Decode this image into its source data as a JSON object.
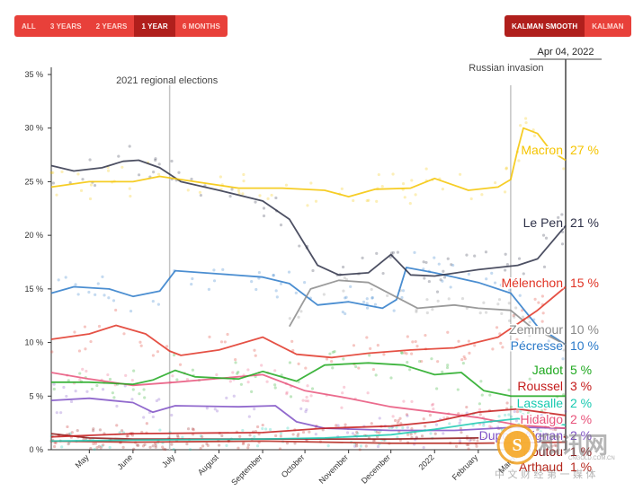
{
  "controls": {
    "range_buttons": [
      {
        "label": "ALL",
        "active": false
      },
      {
        "label": "3 YEARS",
        "active": false
      },
      {
        "label": "2 YEARS",
        "active": false
      },
      {
        "label": "1 YEAR",
        "active": true
      },
      {
        "label": "6 MONTHS",
        "active": false
      }
    ],
    "smoothing_buttons": [
      {
        "label": "KALMAN SMOOTH",
        "active": true
      },
      {
        "label": "KALMAN",
        "active": false
      }
    ]
  },
  "watermark": {
    "brand_text": "和讯网",
    "sub_text": "中 文 财 经 第 一 媒 体",
    "url_text": "CNGOLD.COM.CN"
  },
  "chart_data": {
    "type": "line",
    "title": "French presidential election 2022 polls",
    "date_readout": "Apr 04, 2022",
    "x_range": [
      "2021-04-04",
      "2022-04-04"
    ],
    "x_ticks": [
      {
        "label": "May",
        "date": "2021-05-01"
      },
      {
        "label": "June",
        "date": "2021-06-01"
      },
      {
        "label": "July",
        "date": "2021-07-01"
      },
      {
        "label": "August",
        "date": "2021-08-01"
      },
      {
        "label": "September",
        "date": "2021-09-01"
      },
      {
        "label": "October",
        "date": "2021-10-01"
      },
      {
        "label": "November",
        "date": "2021-11-01"
      },
      {
        "label": "December",
        "date": "2021-12-01"
      },
      {
        "label": "2022",
        "date": "2022-01-01"
      },
      {
        "label": "February",
        "date": "2022-02-01"
      },
      {
        "label": "March",
        "date": "2022-03-01"
      }
    ],
    "ylim": [
      0,
      35
    ],
    "y_ticks": [
      {
        "value": 0,
        "label": "0 %"
      },
      {
        "value": 5,
        "label": "5 %"
      },
      {
        "value": 10,
        "label": "10 %"
      },
      {
        "value": 15,
        "label": "15 %"
      },
      {
        "value": 20,
        "label": "20 %"
      },
      {
        "value": 25,
        "label": "25 %"
      },
      {
        "value": 30,
        "label": "30 %"
      },
      {
        "value": 35,
        "label": "35 %"
      }
    ],
    "annotations": [
      {
        "label": "2021 regional elections",
        "date": "2021-06-27"
      },
      {
        "label": "Russian invasion",
        "date": "2022-02-24"
      }
    ],
    "series": [
      {
        "name": "Macron",
        "value_label": "27 %",
        "color": "#f5c400",
        "points": [
          [
            "2021-04-04",
            24.5
          ],
          [
            "2021-05-01",
            25
          ],
          [
            "2021-06-01",
            25
          ],
          [
            "2021-06-20",
            25.5
          ],
          [
            "2021-07-15",
            25
          ],
          [
            "2021-08-15",
            24.4
          ],
          [
            "2021-09-15",
            24.4
          ],
          [
            "2021-10-15",
            24.2
          ],
          [
            "2021-11-01",
            23.6
          ],
          [
            "2021-11-20",
            24.3
          ],
          [
            "2021-12-15",
            24.4
          ],
          [
            "2022-01-01",
            25.3
          ],
          [
            "2022-01-25",
            24.2
          ],
          [
            "2022-02-15",
            24.5
          ],
          [
            "2022-02-24",
            25.2
          ],
          [
            "2022-03-01",
            28
          ],
          [
            "2022-03-05",
            30
          ],
          [
            "2022-03-15",
            29.5
          ],
          [
            "2022-03-25",
            27.8
          ],
          [
            "2022-04-04",
            27
          ]
        ]
      },
      {
        "name": "Le Pen",
        "value_label": "21 %",
        "color": "#2e3148",
        "points": [
          [
            "2021-04-04",
            26.5
          ],
          [
            "2021-04-20",
            26
          ],
          [
            "2021-05-10",
            26.3
          ],
          [
            "2021-05-25",
            26.9
          ],
          [
            "2021-06-05",
            27
          ],
          [
            "2021-06-20",
            26.3
          ],
          [
            "2021-07-05",
            25
          ],
          [
            "2021-08-01",
            24.2
          ],
          [
            "2021-09-01",
            23.2
          ],
          [
            "2021-09-20",
            21.5
          ],
          [
            "2021-10-10",
            17.2
          ],
          [
            "2021-10-25",
            16.3
          ],
          [
            "2021-11-15",
            16.5
          ],
          [
            "2021-12-01",
            18.2
          ],
          [
            "2021-12-15",
            16.3
          ],
          [
            "2022-01-01",
            16.2
          ],
          [
            "2022-02-01",
            16.8
          ],
          [
            "2022-03-01",
            17.2
          ],
          [
            "2022-03-15",
            17.8
          ],
          [
            "2022-04-04",
            20.9
          ]
        ]
      },
      {
        "name": "Mélenchon",
        "value_label": "15 %",
        "color": "#e03324",
        "points": [
          [
            "2021-04-04",
            10.3
          ],
          [
            "2021-05-01",
            10.8
          ],
          [
            "2021-05-20",
            11.6
          ],
          [
            "2021-06-10",
            10.8
          ],
          [
            "2021-06-27",
            9.2
          ],
          [
            "2021-07-05",
            8.8
          ],
          [
            "2021-08-01",
            9.3
          ],
          [
            "2021-09-01",
            10.5
          ],
          [
            "2021-09-25",
            8.9
          ],
          [
            "2021-10-20",
            8.6
          ],
          [
            "2021-11-15",
            9
          ],
          [
            "2021-12-15",
            9.3
          ],
          [
            "2022-01-15",
            9.5
          ],
          [
            "2022-02-15",
            10.5
          ],
          [
            "2022-03-15",
            13
          ],
          [
            "2022-04-04",
            15.2
          ]
        ]
      },
      {
        "name": "Zemmour",
        "value_label": "10 %",
        "color": "#8a8a8a",
        "points": [
          [
            "2021-09-20",
            11.5
          ],
          [
            "2021-10-05",
            15
          ],
          [
            "2021-10-25",
            15.8
          ],
          [
            "2021-11-15",
            15.6
          ],
          [
            "2021-12-01",
            14.5
          ],
          [
            "2021-12-20",
            13.2
          ],
          [
            "2022-01-15",
            13.5
          ],
          [
            "2022-02-01",
            13.2
          ],
          [
            "2022-02-24",
            13
          ],
          [
            "2022-03-10",
            11.5
          ],
          [
            "2022-04-04",
            9.8
          ]
        ]
      },
      {
        "name": "Pécresse",
        "value_label": "10 %",
        "color": "#2b7ac9",
        "points": [
          [
            "2021-04-04",
            14.6
          ],
          [
            "2021-04-20",
            15.2
          ],
          [
            "2021-05-15",
            15
          ],
          [
            "2021-06-01",
            14.3
          ],
          [
            "2021-06-20",
            14.8
          ],
          [
            "2021-07-01",
            16.7
          ],
          [
            "2021-08-01",
            16.4
          ],
          [
            "2021-09-01",
            16.1
          ],
          [
            "2021-09-20",
            15.5
          ],
          [
            "2021-10-10",
            13.5
          ],
          [
            "2021-11-01",
            13.8
          ],
          [
            "2021-11-25",
            13.2
          ],
          [
            "2021-12-05",
            14
          ],
          [
            "2021-12-12",
            17
          ],
          [
            "2022-01-01",
            16.5
          ],
          [
            "2022-02-01",
            15.6
          ],
          [
            "2022-02-24",
            14.6
          ],
          [
            "2022-03-15",
            11.5
          ],
          [
            "2022-04-04",
            9.8
          ]
        ]
      },
      {
        "name": "Jadot",
        "value_label": "5 %",
        "color": "#1fa81f",
        "points": [
          [
            "2021-04-04",
            6.3
          ],
          [
            "2021-05-01",
            6.3
          ],
          [
            "2021-06-01",
            6.1
          ],
          [
            "2021-06-15",
            6.5
          ],
          [
            "2021-07-01",
            7.4
          ],
          [
            "2021-07-15",
            6.8
          ],
          [
            "2021-08-15",
            6.6
          ],
          [
            "2021-09-01",
            7.3
          ],
          [
            "2021-09-25",
            6.4
          ],
          [
            "2021-10-15",
            7.9
          ],
          [
            "2021-11-15",
            8.1
          ],
          [
            "2021-12-10",
            7.9
          ],
          [
            "2022-01-01",
            7
          ],
          [
            "2022-01-20",
            7.2
          ],
          [
            "2022-02-05",
            5.5
          ],
          [
            "2022-02-24",
            5
          ],
          [
            "2022-04-04",
            5
          ]
        ]
      },
      {
        "name": "Roussel",
        "value_label": "3 %",
        "color": "#c41a1a",
        "points": [
          [
            "2021-04-04",
            1.2
          ],
          [
            "2021-06-01",
            1.5
          ],
          [
            "2021-09-01",
            1.6
          ],
          [
            "2021-10-15",
            2
          ],
          [
            "2021-12-01",
            2.2
          ],
          [
            "2022-01-01",
            2.6
          ],
          [
            "2022-02-01",
            3.5
          ],
          [
            "2022-03-01",
            3.8
          ],
          [
            "2022-04-04",
            3.2
          ]
        ]
      },
      {
        "name": "Lassalle",
        "value_label": "2 %",
        "color": "#17c9b0",
        "points": [
          [
            "2021-04-04",
            0.8
          ],
          [
            "2021-06-01",
            0.9
          ],
          [
            "2021-09-01",
            1
          ],
          [
            "2021-10-15",
            1.1
          ],
          [
            "2021-12-01",
            1.4
          ],
          [
            "2022-01-01",
            1.9
          ],
          [
            "2022-02-01",
            2.5
          ],
          [
            "2022-03-01",
            2.9
          ],
          [
            "2022-04-04",
            2.3
          ]
        ]
      },
      {
        "name": "Hidalgo",
        "value_label": "2 %",
        "color": "#e8527a",
        "points": [
          [
            "2021-04-04",
            7.2
          ],
          [
            "2021-05-01",
            6.6
          ],
          [
            "2021-06-01",
            6
          ],
          [
            "2021-07-01",
            6.3
          ],
          [
            "2021-09-01",
            7
          ],
          [
            "2021-10-01",
            5.5
          ],
          [
            "2021-11-01",
            4.8
          ],
          [
            "2021-12-01",
            4
          ],
          [
            "2022-01-01",
            3.5
          ],
          [
            "2022-02-01",
            3
          ],
          [
            "2022-03-01",
            2.3
          ],
          [
            "2022-04-04",
            2
          ]
        ]
      },
      {
        "name": "Dupont-Aignan",
        "value_label": "2 %",
        "color": "#7e4fc4",
        "points": [
          [
            "2021-04-04",
            4.6
          ],
          [
            "2021-05-01",
            4.8
          ],
          [
            "2021-06-01",
            4.4
          ],
          [
            "2021-06-15",
            3.5
          ],
          [
            "2021-07-01",
            4.1
          ],
          [
            "2021-08-15",
            4
          ],
          [
            "2021-09-10",
            4.1
          ],
          [
            "2021-09-25",
            2.6
          ],
          [
            "2021-10-15",
            2
          ],
          [
            "2021-12-01",
            1.8
          ],
          [
            "2022-01-15",
            1.8
          ],
          [
            "2022-03-01",
            2.1
          ],
          [
            "2022-04-04",
            2
          ]
        ]
      },
      {
        "name": "Poutou",
        "value_label": "1 %",
        "color": "#8e1515",
        "points": [
          [
            "2021-04-04",
            1.5
          ],
          [
            "2021-05-01",
            1.1
          ],
          [
            "2021-06-01",
            1
          ],
          [
            "2021-08-01",
            1
          ],
          [
            "2021-10-01",
            1
          ],
          [
            "2021-12-01",
            1
          ],
          [
            "2022-02-01",
            1.1
          ],
          [
            "2022-04-04",
            1.2
          ]
        ]
      },
      {
        "name": "Arthaud",
        "value_label": "1 %",
        "color": "#b5271d",
        "points": [
          [
            "2021-04-04",
            0.8
          ],
          [
            "2021-06-01",
            0.7
          ],
          [
            "2021-09-01",
            0.8
          ],
          [
            "2021-12-01",
            0.6
          ],
          [
            "2022-02-01",
            0.6
          ],
          [
            "2022-04-04",
            0.7
          ]
        ]
      }
    ]
  }
}
